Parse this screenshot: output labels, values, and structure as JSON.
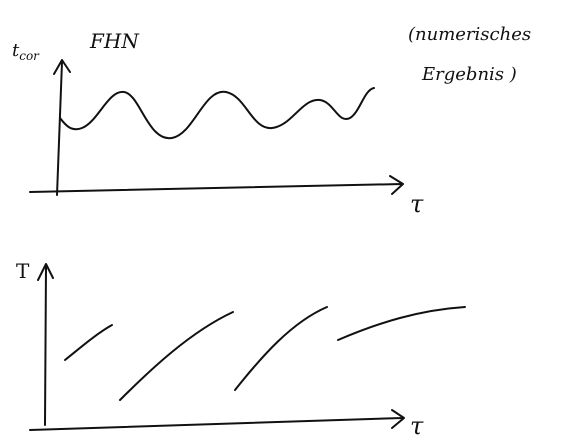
{
  "top_plot": {
    "y_label": "t",
    "y_label_sub": "cor",
    "title": "FHN",
    "x_label": "τ",
    "note": [
      "(numerisches",
      "Ergebnis )"
    ]
  },
  "bottom_plot": {
    "y_label": "T",
    "x_label": "τ"
  }
}
